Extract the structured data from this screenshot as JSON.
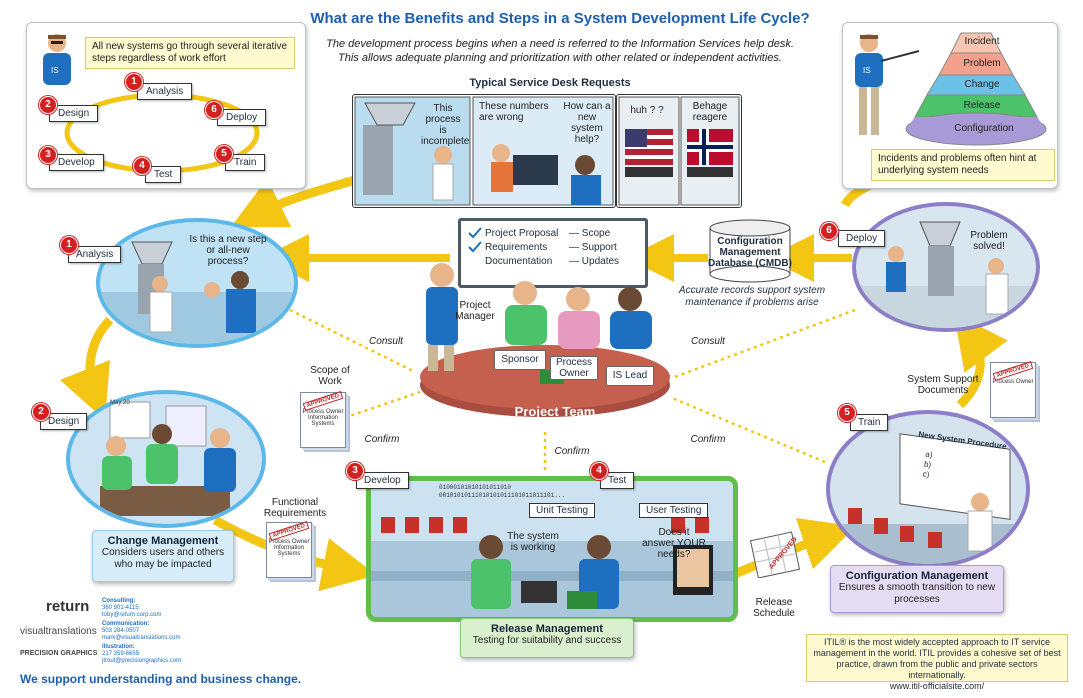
{
  "title": "What are the Benefits and Steps in a System Development Life Cycle?",
  "subtitle": [
    "The development process begins when a need is referred to the Information Services help desk.",
    "This allows adequate planning and prioritization with other related or independent activities."
  ],
  "top_left": {
    "note": "All new systems go through several iterative steps regardless of work effort",
    "shirt_label": "IS",
    "steps": [
      {
        "num": "1",
        "label": "Analysis"
      },
      {
        "num": "2",
        "label": "Design"
      },
      {
        "num": "3",
        "label": "Develop"
      },
      {
        "num": "4",
        "label": "Test"
      },
      {
        "num": "5",
        "label": "Train"
      },
      {
        "num": "6",
        "label": "Deploy"
      }
    ]
  },
  "service_desk": {
    "heading": "Typical Service Desk Requests",
    "bubbles": [
      "This process is incomplete",
      "These numbers are wrong",
      "How can a new system help?",
      "huh ? ?",
      "Behage reagere"
    ]
  },
  "top_right": {
    "layers": [
      "Incident",
      "Problem",
      "Change",
      "Release",
      "Configuration"
    ],
    "layer_colors": [
      "#f6c6b2",
      "#f3a08c",
      "#6ec1e6",
      "#4cc26a",
      "#a79ad6"
    ],
    "note": "Incidents and problems often hint at underlying system needs"
  },
  "analysis": {
    "num": "1",
    "label": "Analysis",
    "bubble": "Is this a new step or all-new process?"
  },
  "board": {
    "col1": [
      "Project Proposal",
      "Requirements",
      "Documentation"
    ],
    "col2": [
      "Scope",
      "Support",
      "Updates"
    ]
  },
  "cmdb": {
    "title": "Configuration Management Database (CMDB)",
    "caption": "Accurate records support system maintenance if problems arise"
  },
  "deploy": {
    "num": "6",
    "label": "Deploy",
    "bubble": "Problem solved!"
  },
  "team": {
    "manager": "Project Manager",
    "cards": [
      "Sponsor",
      "Process Owner",
      "IS Lead"
    ],
    "table_label": "Project Team"
  },
  "flow_labels": {
    "consult_left": "Consult",
    "consult_right": "Consult",
    "confirm_left": "Confirm",
    "confirm_center": "Confirm",
    "confirm_right": "Confirm"
  },
  "docs": {
    "scope": "Scope of Work",
    "functional": "Functional Requirements",
    "support": "System Support Documents",
    "schedule": "Release Schedule",
    "stamp": "APPROVED",
    "doc_lines": [
      "Process Owner",
      "Information Systems"
    ]
  },
  "design": {
    "num": "2",
    "label": "Design",
    "calendar": "May 20"
  },
  "change_mgmt": {
    "title": "Change Management",
    "text": "Considers users and others who may be impacted"
  },
  "develop_test": {
    "develop_num": "3",
    "develop_label": "Develop",
    "test_num": "4",
    "test_label": "Test",
    "binary": [
      "01000101010101011010",
      "00101010111010101011101011011101..."
    ],
    "unit": "Unit Testing",
    "user": "User Testing",
    "bubble1": "The system is working",
    "bubble2": "Does it answer YOUR needs?"
  },
  "release_mgmt": {
    "title": "Release Management",
    "text": "Testing for suitability and success"
  },
  "train": {
    "num": "5",
    "label": "Train",
    "board_title": "New System Procedure",
    "board_items": [
      "a)",
      "b)",
      "c)"
    ]
  },
  "config_mgmt": {
    "title": "Configuration Management",
    "text": "Ensures a smooth transition to new processes"
  },
  "credits": {
    "logo1": "return",
    "logo2": "visualtranslations",
    "logo3": "PRECISION GRAPHICS",
    "c1_head": "Consulting:",
    "c1_phone": "360 901-4115",
    "c1_mail": "toby@return corp.com",
    "c2_head": "Communication:",
    "c2_phone": "503 284-0507",
    "c2_mail": "mark@visualtranslations.com",
    "c3_head": "Illustration:",
    "c3_phone": "217 359-6655",
    "c3_mail": "jtrout@precisiongraphics.com",
    "tagline": "We support understanding and business change."
  },
  "itil": {
    "text": "ITIL® is the most widely accepted approach to IT service management in the world. ITIL provides a cohesive set of best practice, drawn from the public and private sectors internationally.",
    "url": "www.itil-officialsite.com/"
  },
  "colors": {
    "title_blue": "#1d5fae",
    "badge_red": "#d32020",
    "arrow_yellow": "#f3c614",
    "green_frame": "#5fbf4a"
  }
}
